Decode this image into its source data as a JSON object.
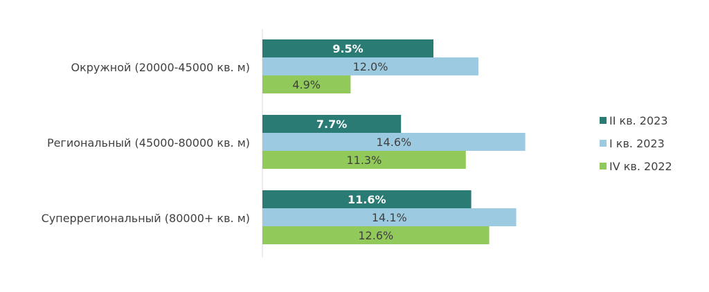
{
  "chart_data": {
    "type": "bar",
    "orientation": "horizontal",
    "categories": [
      "Окружной (20000-45000 кв. м)",
      "Региональный (45000-80000 кв. м)",
      "Суперрегиональный (80000+ кв. м)"
    ],
    "series": [
      {
        "name": "II кв. 2023",
        "values": [
          9.5,
          7.7,
          11.6
        ],
        "labels": [
          "9.5%",
          "7.7%",
          "11.6%"
        ],
        "color": "#2a7b73",
        "label_bold": true
      },
      {
        "name": "I кв. 2023",
        "values": [
          12.0,
          14.6,
          14.1
        ],
        "labels": [
          "12.0%",
          "14.6%",
          "14.1%"
        ],
        "color": "#9ccae1",
        "label_bold": false
      },
      {
        "name": "IV кв. 2022",
        "values": [
          4.9,
          11.3,
          12.6
        ],
        "labels": [
          "4.9%",
          "11.3%",
          "12.6%"
        ],
        "color": "#92c95b",
        "label_bold": false
      }
    ],
    "xlim": [
      0,
      24
    ],
    "grid": false,
    "legend_position": "right"
  }
}
